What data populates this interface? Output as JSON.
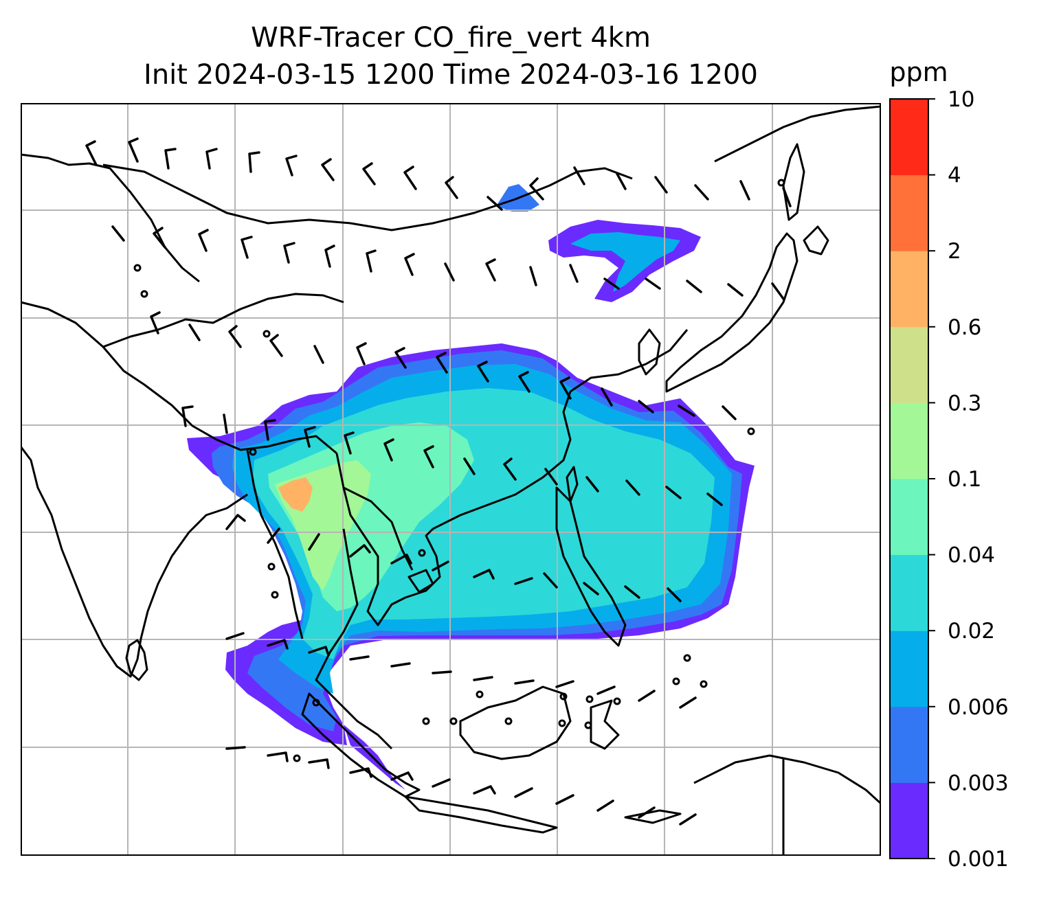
{
  "title": {
    "line1": "WRF-Tracer CO_fire_vert 4km",
    "line2": "Init 2024-03-15 1200 Time 2024-03-16 1200"
  },
  "colorbar": {
    "unit": "ppm",
    "levels": [
      "0.001",
      "0.003",
      "0.006",
      "0.02",
      "0.04",
      "0.1",
      "0.3",
      "0.6",
      "2",
      "4",
      "10"
    ],
    "colors": [
      "#6a2bff",
      "#3477f5",
      "#05aeea",
      "#2dd8d8",
      "#6cf5bd",
      "#a3f797",
      "#cfe08a",
      "#ffb264",
      "#ff7139",
      "#ff2a18"
    ]
  },
  "map": {
    "gridlines": true,
    "features": [
      "coastlines",
      "country borders",
      "wind barbs",
      "CO tracer concentration shading"
    ]
  }
}
